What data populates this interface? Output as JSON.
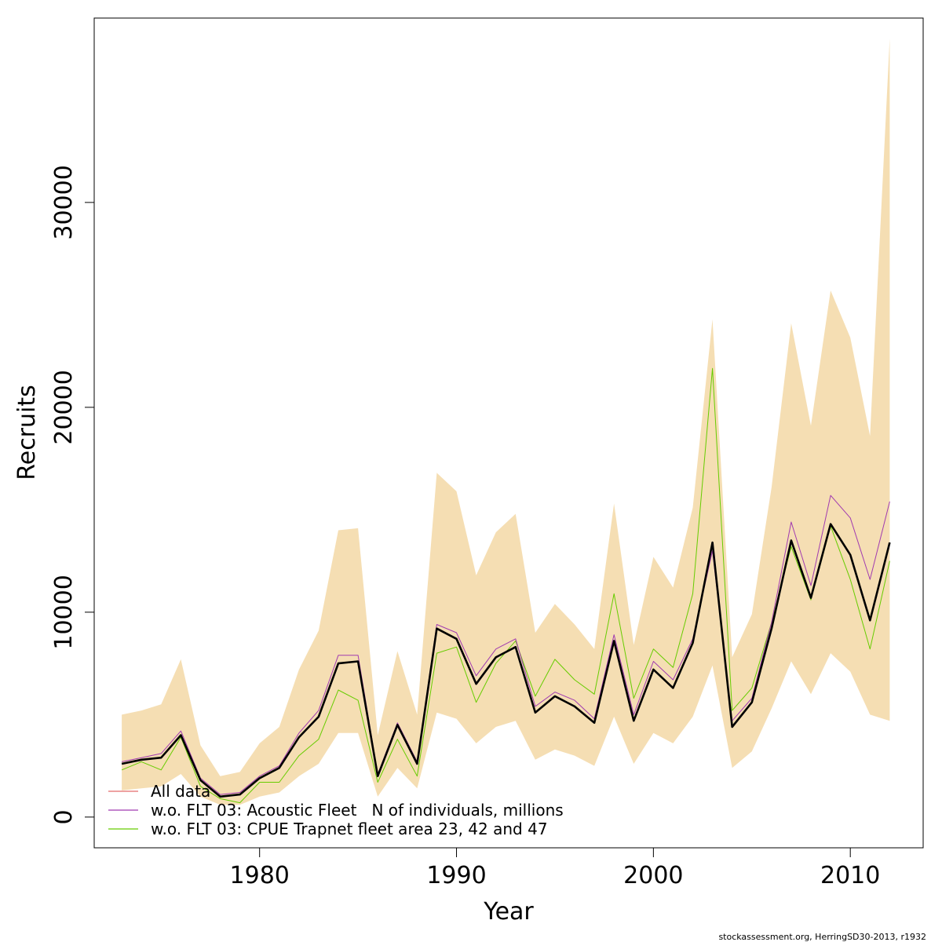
{
  "chart_data": {
    "type": "line",
    "xlabel": "Year",
    "ylabel": "Recruits",
    "xlim": [
      1971.6,
      2013.7
    ],
    "ylim": [
      -1500,
      39000
    ],
    "x_ticks": [
      1980,
      1990,
      2000,
      2010
    ],
    "y_ticks": [
      0,
      10000,
      20000,
      30000
    ],
    "x": [
      1973,
      1974,
      1975,
      1976,
      1977,
      1978,
      1979,
      1980,
      1981,
      1982,
      1983,
      1984,
      1985,
      1986,
      1987,
      1988,
      1989,
      1990,
      1991,
      1992,
      1993,
      1994,
      1995,
      1996,
      1997,
      1998,
      1999,
      2000,
      2001,
      2002,
      2003,
      2004,
      2005,
      2006,
      2007,
      2008,
      2009,
      2010,
      2011,
      2012
    ],
    "band": {
      "name": "confidence interval",
      "lower": [
        1300,
        1400,
        1500,
        2100,
        1000,
        600,
        600,
        1000,
        1200,
        2000,
        2600,
        4100,
        4100,
        1000,
        2400,
        1400,
        5100,
        4800,
        3600,
        4400,
        4700,
        2800,
        3300,
        3000,
        2500,
        4900,
        2600,
        4100,
        3600,
        4900,
        7400,
        2400,
        3200,
        5300,
        7600,
        6000,
        8000,
        7100,
        5000,
        4700
      ],
      "upper": [
        5000,
        5200,
        5500,
        7700,
        3500,
        2000,
        2200,
        3600,
        4400,
        7200,
        9100,
        14000,
        14100,
        4000,
        8100,
        5000,
        16800,
        15900,
        11800,
        13900,
        14800,
        9000,
        10400,
        9400,
        8200,
        15300,
        8400,
        12700,
        11200,
        15100,
        24300,
        7800,
        9900,
        16100,
        24100,
        19100,
        25700,
        23400,
        18600,
        38000
      ]
    },
    "series": [
      {
        "name": "base (all data, bold)",
        "color": "#000000",
        "values": [
          2600,
          2800,
          2900,
          4000,
          1800,
          1000,
          1100,
          1900,
          2400,
          3900,
          4900,
          7500,
          7600,
          2000,
          4500,
          2600,
          9200,
          8700,
          6500,
          7800,
          8300,
          5100,
          5900,
          5400,
          4600,
          8600,
          4700,
          7200,
          6300,
          8500,
          13400,
          4400,
          5600,
          9200,
          13500,
          10700,
          14300,
          12800,
          9600,
          13400
        ]
      },
      {
        "name": "All data",
        "color": "#e36b6b",
        "values": [
          2600,
          2800,
          2900,
          4000,
          1800,
          1000,
          1100,
          1900,
          2400,
          3900,
          4900,
          7500,
          7600,
          2000,
          4500,
          2600,
          9200,
          8700,
          6500,
          7800,
          8300,
          5100,
          5900,
          5400,
          4600,
          8600,
          4700,
          7200,
          6300,
          8500,
          13400,
          4400,
          5600,
          9200,
          13500,
          10700,
          14300,
          12800,
          9600,
          13400
        ]
      },
      {
        "name": "w.o. FLT 03: Acoustic Fleet   N of individuals, millions",
        "color": "#a13bb0",
        "values": [
          2700,
          2900,
          3100,
          4200,
          1900,
          1100,
          1200,
          2000,
          2500,
          4100,
          5200,
          7900,
          7900,
          2100,
          4600,
          2700,
          9400,
          9000,
          6900,
          8200,
          8700,
          5400,
          6100,
          5700,
          4800,
          8900,
          5000,
          7600,
          6700,
          8700,
          13000,
          4700,
          5800,
          9500,
          14400,
          11300,
          15700,
          14600,
          11600,
          15400
        ]
      },
      {
        "name": "w.o. FLT 03: CPUE Trapnet fleet area 23, 42 and 47",
        "color": "#66cc00",
        "values": [
          2300,
          2700,
          2300,
          3900,
          1500,
          900,
          700,
          1700,
          1700,
          3000,
          3800,
          6200,
          5700,
          1700,
          3800,
          2000,
          8000,
          8300,
          5600,
          7500,
          8600,
          5900,
          7700,
          6700,
          6000,
          10900,
          5800,
          8200,
          7300,
          10900,
          21900,
          5200,
          6300,
          9500,
          13200,
          10600,
          14200,
          11600,
          8200,
          12500
        ]
      }
    ],
    "legend": [
      {
        "label": "All data",
        "color": "#e36b6b"
      },
      {
        "label": "w.o. FLT 03: Acoustic Fleet   N of individuals, millions",
        "color": "#a13bb0"
      },
      {
        "label": "w.o. FLT 03: CPUE Trapnet fleet area 23, 42 and 47",
        "color": "#66cc00"
      }
    ],
    "legend_position": "bottom-left",
    "band_color": "#f5deb3",
    "credit": "stockassessment.org, HerringSD30-2013, r1932"
  }
}
